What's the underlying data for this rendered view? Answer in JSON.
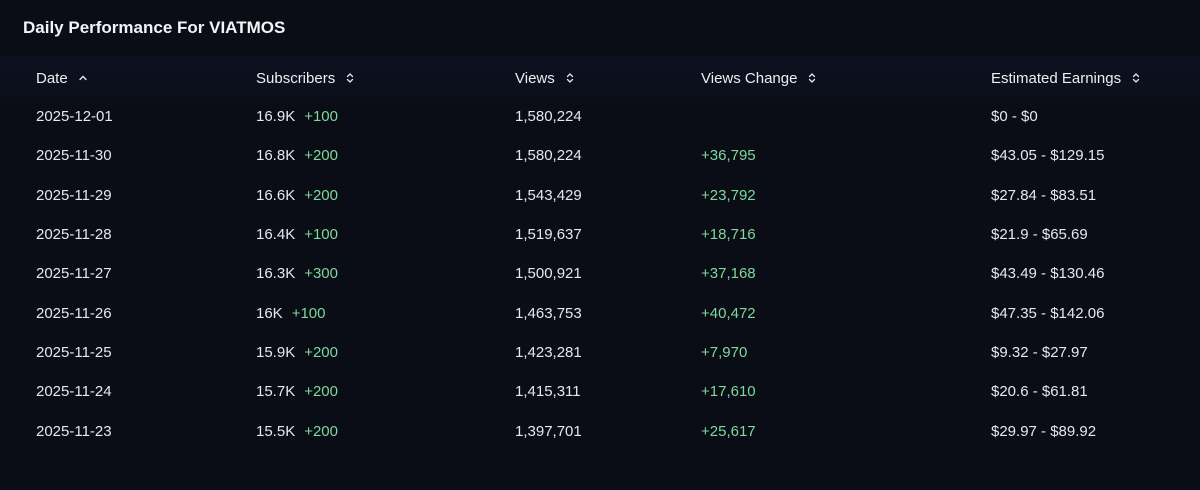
{
  "header": {
    "title": "Daily Performance For VIATMOS"
  },
  "table": {
    "columns": [
      "Date",
      "Subscribers",
      "Views",
      "Views Change",
      "Estimated Earnings"
    ],
    "rows": [
      {
        "date": "2025-12-01",
        "subscribers": "16.9K",
        "subscribers_change": "+100",
        "views": "1,580,224",
        "views_change": null,
        "earnings": "$0 - $0"
      },
      {
        "date": "2025-11-30",
        "subscribers": "16.8K",
        "subscribers_change": "+200",
        "views": "1,580,224",
        "views_change": "+36,795",
        "earnings": "$43.05 - $129.15"
      },
      {
        "date": "2025-11-29",
        "subscribers": "16.6K",
        "subscribers_change": "+200",
        "views": "1,543,429",
        "views_change": "+23,792",
        "earnings": "$27.84 - $83.51"
      },
      {
        "date": "2025-11-28",
        "subscribers": "16.4K",
        "subscribers_change": "+100",
        "views": "1,519,637",
        "views_change": "+18,716",
        "earnings": "$21.9 - $65.69"
      },
      {
        "date": "2025-11-27",
        "subscribers": "16.3K",
        "subscribers_change": "+300",
        "views": "1,500,921",
        "views_change": "+37,168",
        "earnings": "$43.49 - $130.46"
      },
      {
        "date": "2025-11-26",
        "subscribers": "16K",
        "subscribers_change": "+100",
        "views": "1,463,753",
        "views_change": "+40,472",
        "earnings": "$47.35 - $142.06"
      },
      {
        "date": "2025-11-25",
        "subscribers": "15.9K",
        "subscribers_change": "+200",
        "views": "1,423,281",
        "views_change": "+7,970",
        "earnings": "$9.32 - $27.97"
      },
      {
        "date": "2025-11-24",
        "subscribers": "15.7K",
        "subscribers_change": "+200",
        "views": "1,415,311",
        "views_change": "+17,610",
        "earnings": "$20.6 - $61.81"
      },
      {
        "date": "2025-11-23",
        "subscribers": "15.5K",
        "subscribers_change": "+200",
        "views": "1,397,701",
        "views_change": "+25,617",
        "earnings": "$29.97 - $89.92"
      }
    ]
  }
}
